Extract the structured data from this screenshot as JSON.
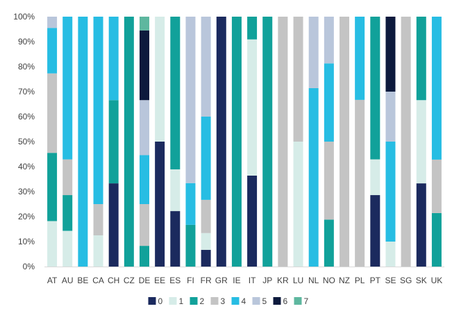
{
  "chart_data": {
    "type": "bar",
    "stacked": true,
    "title": "",
    "xlabel": "",
    "ylabel": "",
    "ylim": [
      0,
      100
    ],
    "y_ticks": [
      "0%",
      "10%",
      "20%",
      "30%",
      "40%",
      "50%",
      "60%",
      "70%",
      "80%",
      "90%",
      "100%"
    ],
    "grid": false,
    "legend_position": "bottom",
    "categories": [
      "AT",
      "AU",
      "BE",
      "CA",
      "CH",
      "CZ",
      "DE",
      "EE",
      "ES",
      "FI",
      "FR",
      "GR",
      "IE",
      "IT",
      "JP",
      "KR",
      "LU",
      "NL",
      "NO",
      "NZ",
      "PL",
      "PT",
      "SE",
      "SG",
      "SK",
      "UK"
    ],
    "series": [
      {
        "name": "0",
        "color": "#1b2a5e",
        "values": [
          0,
          0,
          0,
          0,
          33.3,
          0,
          0,
          50,
          22.2,
          0,
          6.7,
          100,
          0,
          36.4,
          0,
          0,
          0,
          0,
          0,
          0,
          0,
          28.6,
          0,
          0,
          33.3,
          0
        ]
      },
      {
        "name": "1",
        "color": "#d6ece8",
        "values": [
          18.2,
          14.3,
          0,
          12.5,
          0,
          0,
          0,
          50,
          16.7,
          0,
          6.7,
          0,
          0,
          54.5,
          0,
          0,
          50,
          0,
          0,
          0,
          0,
          14.3,
          10,
          0,
          33.3,
          0
        ]
      },
      {
        "name": "2",
        "color": "#11a19a",
        "values": [
          27.3,
          14.3,
          0,
          0,
          33.3,
          100,
          8.3,
          0,
          61.1,
          16.7,
          0,
          0,
          100,
          9.1,
          100,
          0,
          0,
          0,
          18.8,
          0,
          0,
          57.1,
          0,
          0,
          33.4,
          21.4
        ]
      },
      {
        "name": "3",
        "color": "#c4c4c4",
        "values": [
          31.8,
          14.3,
          0,
          12.5,
          0,
          0,
          16.7,
          0,
          0,
          0,
          13.3,
          0,
          0,
          0,
          0,
          100,
          50,
          0,
          31.2,
          100,
          66.7,
          0,
          0,
          100,
          0,
          21.4
        ]
      },
      {
        "name": "4",
        "color": "#27bde3",
        "values": [
          18.2,
          57.1,
          100,
          75,
          33.4,
          0,
          19.6,
          0,
          0,
          16.7,
          33.3,
          0,
          0,
          0,
          0,
          0,
          0,
          71.4,
          31.3,
          0,
          33.3,
          0,
          40,
          0,
          0,
          57.2
        ]
      },
      {
        "name": "5",
        "color": "#b9c6db",
        "values": [
          4.5,
          0,
          0,
          0,
          0,
          0,
          22,
          0,
          0,
          66.6,
          40,
          0,
          0,
          0,
          0,
          0,
          0,
          28.6,
          18.7,
          0,
          0,
          0,
          20,
          0,
          0,
          0
        ]
      },
      {
        "name": "6",
        "color": "#0d1a3d",
        "values": [
          0,
          0,
          0,
          0,
          0,
          0,
          27.9,
          0,
          0,
          0,
          0,
          0,
          0,
          0,
          0,
          0,
          0,
          0,
          0,
          0,
          0,
          0,
          30,
          0,
          0,
          0
        ]
      },
      {
        "name": "7",
        "color": "#5eb79f",
        "values": [
          0,
          0,
          0,
          0,
          0,
          0,
          5.5,
          0,
          0,
          0,
          0,
          0,
          0,
          0,
          0,
          0,
          0,
          0,
          0,
          0,
          0,
          0,
          0,
          0,
          0,
          0
        ]
      }
    ]
  }
}
